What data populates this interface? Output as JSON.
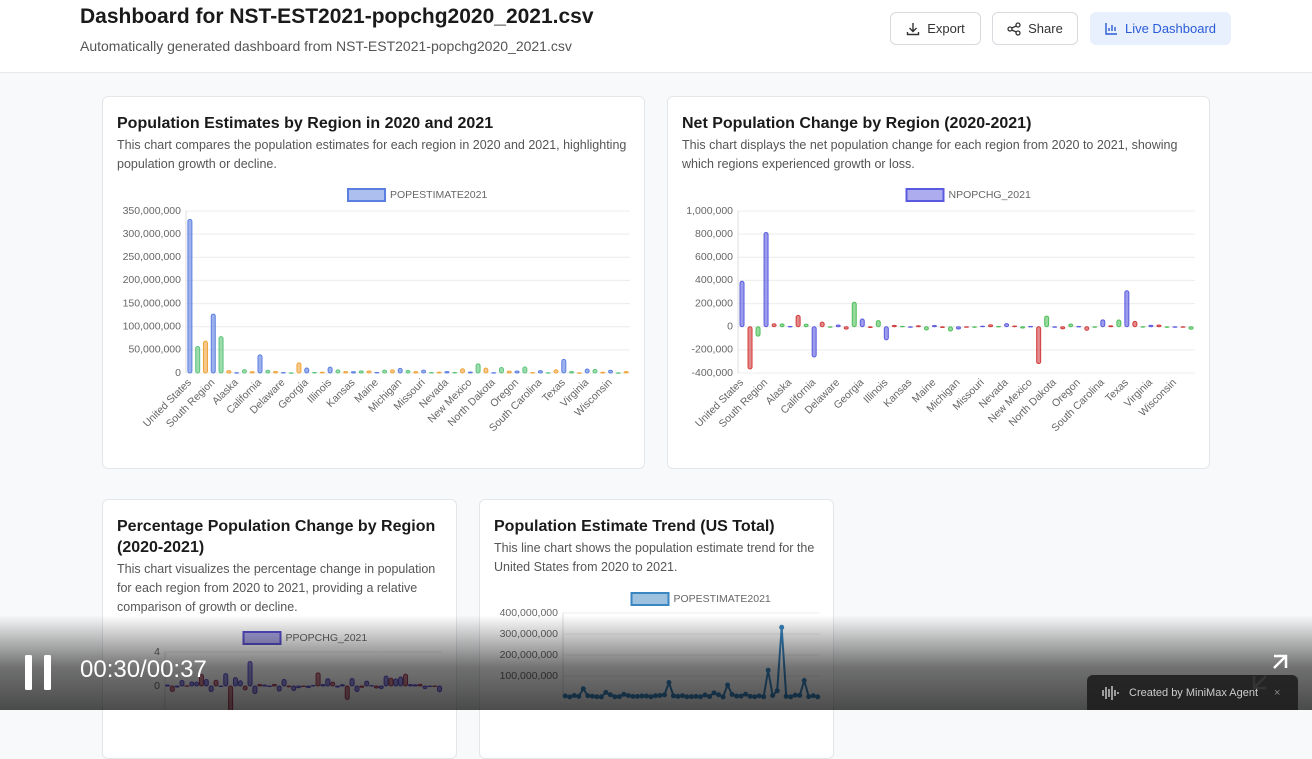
{
  "header": {
    "title": "Dashboard for NST-EST2021-popchg2020_2021.csv",
    "subtitle": "Automatically generated dashboard from NST-EST2021-popchg2020_2021.csv"
  },
  "buttons": [
    {
      "label": "Export"
    },
    {
      "label": "Share"
    },
    {
      "label": "Live Dashboard"
    }
  ],
  "player": {
    "time": "00:30/00:37",
    "badge": "Created by MiniMax Agent"
  },
  "chart_data": [
    {
      "type": "bar",
      "title": "Population Estimates by Region in 2020 and 2021",
      "description": "This chart compares the population estimates for each region in 2020 and 2021, highlighting population growth or decline.",
      "categories": [
        "United States",
        null,
        null,
        "South Region",
        null,
        null,
        "Alaska",
        null,
        null,
        "California",
        null,
        null,
        "Delaware",
        null,
        null,
        "Georgia",
        null,
        null,
        "Illinois",
        null,
        null,
        "Kansas",
        null,
        null,
        "Maine",
        null,
        null,
        "Michigan",
        null,
        null,
        "Missouri",
        null,
        null,
        "Nevada",
        null,
        null,
        "New Mexico",
        null,
        null,
        "North Dakota",
        null,
        null,
        "Oregon",
        null,
        null,
        "South Carolina",
        null,
        null,
        "Texas",
        null,
        null,
        "Virginia",
        null,
        null,
        "Wisconsin",
        null,
        null
      ],
      "series": [
        {
          "name": "POPESTIMATE2021",
          "colors": [
            "#5b7fe0",
            "#5cc47a",
            "#f0a43a"
          ],
          "values": [
            331893745,
            57159838,
            68841444,
            127225329,
            78667134,
            5039877,
            732673,
            7276316,
            3025891,
            39237836,
            5812069,
            3605597,
            1003384,
            670050,
            21781128,
            10799566,
            1441553,
            1900923,
            12671469,
            6805985,
            3193079,
            2934582,
            4509394,
            4624047,
            1372247,
            6165129,
            6984723,
            10050811,
            5707390,
            2949965,
            6168187,
            1104271,
            1963692,
            3143991,
            1388992,
            9267130,
            2115877,
            19835913,
            10551162,
            774948,
            11780017,
            3986639,
            4246155,
            13012059,
            1095610,
            5190705,
            895376,
            6975218,
            29527941,
            3337975,
            645570,
            8642274,
            7738692,
            1782959,
            5895908,
            578803,
            3263584
          ]
        }
      ],
      "ylim": [
        0,
        350000000
      ],
      "yticks": [
        0,
        {
          "value": 50000000,
          "label": "50,000,000"
        },
        {
          "value": 100000000,
          "label": "100,000,000"
        },
        {
          "value": 150000000,
          "label": "150,000,000"
        },
        {
          "value": 200000000,
          "label": "200,000,000"
        },
        {
          "value": 250000000,
          "label": "250,000,000"
        },
        {
          "value": 300000000,
          "label": "300,000,000"
        },
        {
          "value": 350000000,
          "label": "350,000,000"
        }
      ],
      "grid": true,
      "legend": "top"
    },
    {
      "type": "bar",
      "title": "Net Population Change by Region (2020-2021)",
      "description": "This chart displays the net population change for each region from 2020 to 2021, showing which regions experienced growth or loss.",
      "categories": [
        "United States",
        null,
        null,
        "South Region",
        null,
        null,
        "Alaska",
        null,
        null,
        "California",
        null,
        null,
        "Delaware",
        null,
        null,
        "Georgia",
        null,
        null,
        "Illinois",
        null,
        null,
        "Kansas",
        null,
        null,
        "Maine",
        null,
        null,
        "Michigan",
        null,
        null,
        "Missouri",
        null,
        null,
        "Nevada",
        null,
        null,
        "New Mexico",
        null,
        null,
        "North Dakota",
        null,
        null,
        "Oregon",
        null,
        null,
        "South Carolina",
        null,
        null,
        "Texas",
        null,
        null,
        "Virginia",
        null,
        null,
        "Wisconsin",
        null,
        null
      ],
      "series": [
        {
          "name": "NPOPCHG_2021",
          "colors": [
            "#5a5ae0",
            "#d23b3b",
            "#4fbf5a"
          ],
          "values": [
            392665,
            -365795,
            -81730,
            814288,
            25902,
            24338,
            3391,
            98330,
            22802,
            -261902,
            39402,
            -1057,
            14470,
            -20477,
            211196,
            66315,
            -6809,
            53151,
            -113776,
            11367,
            3941,
            -74,
            8512,
            -27859,
            10418,
            -6365,
            -37647,
            -20115,
            -3306,
            -5732,
            5097,
            16839,
            3238,
            26940,
            6302,
            -11157,
            3309,
            -319020,
            91998,
            -5107,
            -18217,
            22985,
            2458,
            -31374,
            -3208,
            59600,
            8155,
            57590,
            310288,
            45713,
            1128,
            12870,
            15178,
            -5519,
            -3420,
            -115,
            -21921
          ]
        }
      ],
      "ylim": [
        -400000,
        1000000
      ],
      "yticks": [
        {
          "value": -400000,
          "label": "-400,000"
        },
        {
          "value": -200000,
          "label": "-200,000"
        },
        0,
        {
          "value": 200000,
          "label": "200,000"
        },
        {
          "value": 400000,
          "label": "400,000"
        },
        {
          "value": 600000,
          "label": "600,000"
        },
        {
          "value": 800000,
          "label": "800,000"
        },
        {
          "value": 1000000,
          "label": "1,000,000"
        }
      ],
      "grid": true,
      "legend": "top"
    },
    {
      "type": "bar",
      "title": "Percentage Population Change by Region (2020-2021)",
      "description": "This chart visualizes the percentage change in population for each region from 2020 to 2021, providing a relative comparison of growth or decline.",
      "series": [
        {
          "name": "PPOPCHG_2021",
          "colors": [
            "#5a4fcf",
            "#a83a55",
            "#5a4fcf"
          ],
          "values": [
            0.12,
            -0.64,
            -0.12,
            0.64,
            0.03,
            0.49,
            0.46,
            1.37,
            0.76,
            -0.66,
            0.68,
            -0.03,
            1.46,
            -2.96,
            0.98,
            0.62,
            -0.47,
            2.88,
            -0.89,
            0.17,
            0.12,
            0.0,
            0.19,
            -0.6,
            0.77,
            -0.1,
            -0.54,
            -0.2,
            -0.06,
            -0.19,
            0.08,
            1.55,
            0.17,
            0.86,
            0.46,
            -0.12,
            0.16,
            -1.58,
            0.88,
            -0.66,
            -0.15,
            0.58,
            0.06,
            -0.24,
            -0.29,
            1.16,
            0.92,
            0.83,
            1.06,
            1.39,
            0.17,
            0.15,
            0.2,
            -0.31,
            -0.06,
            -0.02,
            -0.67
          ]
        }
      ],
      "ylim": [
        -4,
        4
      ],
      "yticks": [
        0,
        4
      ],
      "grid": true,
      "legend": "top"
    },
    {
      "type": "line",
      "title": "Population Estimate Trend (US Total)",
      "description": "This line chart shows the population estimate trend for the United States from 2020 to 2021.",
      "series": [
        {
          "name": "POPESTIMATE2021",
          "color": "#3a86c0",
          "values": [
            5039877,
            732673,
            7276316,
            3025891,
            39237836,
            5812069,
            3605597,
            1003384,
            670050,
            21781128,
            10799566,
            1441553,
            1900923,
            12671469,
            6805985,
            3193079,
            2934582,
            4509394,
            4624047,
            1372247,
            6165129,
            6984723,
            10050811,
            68841444,
            5707390,
            2949965,
            6168187,
            1104271,
            1963692,
            3143991,
            1388992,
            9267130,
            2115877,
            19835913,
            10551162,
            774948,
            57159838,
            11780017,
            3986639,
            4246155,
            13012059,
            3263584,
            1095610,
            5190705,
            895376,
            127225329,
            6975218,
            29527941,
            331893745,
            3337975,
            645570,
            8642274,
            7738692,
            78667134,
            1782959,
            5895908,
            578803
          ]
        }
      ],
      "ylim": [
        0,
        400000000
      ],
      "yticks": [
        {
          "value": 100000000,
          "label": "100,000,000"
        },
        {
          "value": 200000000,
          "label": "200,000,000"
        },
        {
          "value": 300000000,
          "label": "300,000,000"
        },
        {
          "value": 400000000,
          "label": "400,000,000"
        }
      ],
      "grid": true,
      "legend": "top"
    }
  ]
}
